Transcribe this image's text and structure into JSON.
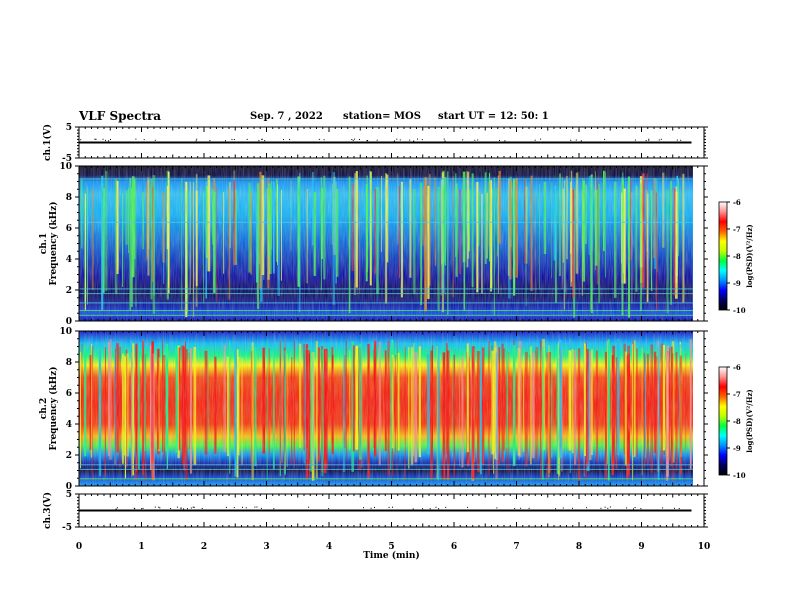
{
  "header": {
    "title": "VLF Spectra",
    "date": "Sep. 7 , 2022",
    "station": "station= MOS",
    "start": "start  UT =   12: 50: 1"
  },
  "colors": {
    "colormap": [
      "#000000",
      "#000060",
      "#0000ff",
      "#0090ff",
      "#00ffff",
      "#00ff40",
      "#c0ff00",
      "#ffff00",
      "#ff6000",
      "#ff0000",
      "#ff9090",
      "#ffffff"
    ]
  },
  "chart_data": [
    {
      "type": "line",
      "panel": "ch1-voltage",
      "ylabel": "ch.1(V)",
      "ylim": [
        -5,
        5
      ],
      "yticks": [
        "5",
        "-5"
      ],
      "xlim": [
        0,
        10
      ],
      "x": [
        0,
        9.8
      ],
      "y": [
        0,
        0
      ]
    },
    {
      "type": "heatmap",
      "panel": "ch1-spectrogram",
      "ylabel": "ch.1\nFrequency (kHz)",
      "ylim": [
        0,
        10
      ],
      "yticks": [
        "0",
        "2",
        "4",
        "6",
        "8",
        "10"
      ],
      "xlim": [
        0,
        9.8
      ],
      "colorbar": {
        "label": "log(PSD)(V²/Hz)",
        "range": [
          -10,
          -6
        ],
        "ticks": [
          "-6",
          "-7",
          "-8",
          "-9",
          "-10"
        ]
      }
    },
    {
      "type": "heatmap",
      "panel": "ch2-spectrogram",
      "ylabel": "ch.2\nFrequency (kHz)",
      "ylim": [
        0,
        10
      ],
      "yticks": [
        "0",
        "2",
        "4",
        "6",
        "8",
        "10"
      ],
      "xlim": [
        0,
        9.8
      ],
      "colorbar": {
        "label": "log(PSD)(V²/Hz)",
        "range": [
          -10,
          -6
        ],
        "ticks": [
          "-6",
          "-7",
          "-8",
          "-9",
          "-10"
        ]
      }
    },
    {
      "type": "line",
      "panel": "ch3-voltage",
      "ylabel": "ch.3(V)",
      "ylim": [
        -5,
        5
      ],
      "yticks": [
        "5",
        "-5"
      ],
      "xlim": [
        0,
        10
      ],
      "x": [
        0,
        9.8
      ],
      "y": [
        0,
        0
      ]
    },
    {
      "type": "axis",
      "panel": "time-axis",
      "xlabel": "Time (min)",
      "xlim": [
        0,
        10
      ],
      "xticks": [
        "0",
        "1",
        "2",
        "3",
        "4",
        "5",
        "6",
        "7",
        "8",
        "9",
        "10"
      ]
    }
  ]
}
